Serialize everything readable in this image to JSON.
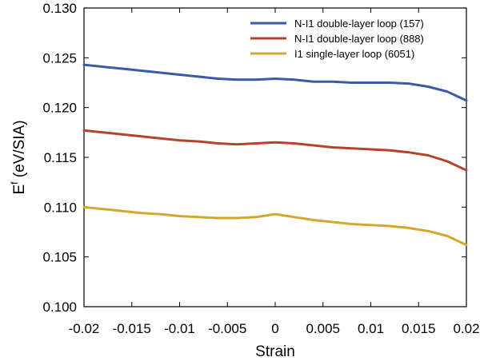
{
  "chart_data": {
    "type": "line",
    "xlabel": "Strain",
    "ylabel": "E",
    "ylabel_superscript": "f",
    "ylabel_unit": " (eV/SIA)",
    "xlim": [
      -0.02,
      0.02
    ],
    "ylim": [
      0.1,
      0.13
    ],
    "x_ticks": [
      -0.02,
      -0.015,
      -0.01,
      -0.005,
      0,
      0.005,
      0.01,
      0.015,
      0.02
    ],
    "x_tick_labels": [
      "-0.02",
      "-0.015",
      "-0.01",
      "-0.005",
      "0",
      "0.005",
      "0.01",
      "0.015",
      "0.02"
    ],
    "y_ticks": [
      0.1,
      0.105,
      0.11,
      0.115,
      0.12,
      0.125,
      0.13
    ],
    "y_tick_labels": [
      "0.100",
      "0.105",
      "0.110",
      "0.115",
      "0.120",
      "0.125",
      "0.130"
    ],
    "grid": false,
    "legend_position": "top-right",
    "series": [
      {
        "name": "N-I1 double-layer loop (157)",
        "color": "#3a5aa8",
        "x": [
          -0.02,
          -0.018,
          -0.016,
          -0.014,
          -0.012,
          -0.01,
          -0.008,
          -0.006,
          -0.004,
          -0.002,
          0,
          0.002,
          0.004,
          0.006,
          0.008,
          0.01,
          0.012,
          0.014,
          0.016,
          0.018,
          0.02
        ],
        "y": [
          0.1243,
          0.1241,
          0.1239,
          0.1237,
          0.1235,
          0.1233,
          0.1231,
          0.1229,
          0.1228,
          0.1228,
          0.1229,
          0.1228,
          0.1226,
          0.1226,
          0.1225,
          0.1225,
          0.1225,
          0.1224,
          0.1221,
          0.1216,
          0.1207
        ]
      },
      {
        "name": "N-I1 double-layer loop (888)",
        "color": "#b5432c",
        "x": [
          -0.02,
          -0.018,
          -0.016,
          -0.014,
          -0.012,
          -0.01,
          -0.008,
          -0.006,
          -0.004,
          -0.002,
          0,
          0.002,
          0.004,
          0.006,
          0.008,
          0.01,
          0.012,
          0.014,
          0.016,
          0.018,
          0.02
        ],
        "y": [
          0.1177,
          0.1175,
          0.1173,
          0.1171,
          0.1169,
          0.1167,
          0.1166,
          0.1164,
          0.1163,
          0.1164,
          0.1165,
          0.1164,
          0.1162,
          0.116,
          0.1159,
          0.1158,
          0.1157,
          0.1155,
          0.1152,
          0.1146,
          0.1137
        ]
      },
      {
        "name": "I1 single-layer loop (6051)",
        "color": "#d4a72c",
        "x": [
          -0.02,
          -0.018,
          -0.016,
          -0.014,
          -0.012,
          -0.01,
          -0.008,
          -0.006,
          -0.004,
          -0.002,
          0,
          0.002,
          0.004,
          0.006,
          0.008,
          0.01,
          0.012,
          0.014,
          0.016,
          0.018,
          0.02
        ],
        "y": [
          0.11,
          0.1098,
          0.1096,
          0.1094,
          0.1093,
          0.1091,
          0.109,
          0.1089,
          0.1089,
          0.109,
          0.1093,
          0.109,
          0.1087,
          0.1085,
          0.1083,
          0.1082,
          0.1081,
          0.1079,
          0.1076,
          0.1071,
          0.1062
        ]
      }
    ]
  }
}
